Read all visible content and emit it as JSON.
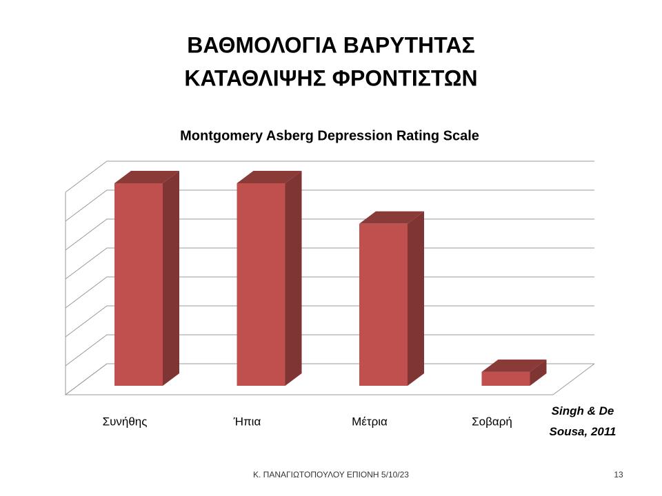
{
  "slide_title": [
    "ΒΑΘΜΟΛΟΓΙΑ ΒΑΡΥΤΗΤΑΣ",
    "ΚΑΤΑΘΛΙΨΗΣ ΦΡΟΝΤΙΣΤΩΝ"
  ],
  "chart_data": {
    "type": "bar3d",
    "title": "Montgomery Asberg Depression Rating Scale",
    "categories": [
      "Συνήθης",
      "Ήπια",
      "Μέτρια",
      "Σοβαρή"
    ],
    "values": [
      35,
      35,
      28,
      2.4
    ],
    "color": "#c0504d",
    "ylim": [
      0,
      35
    ],
    "yticks": [
      0,
      5,
      10,
      15,
      20,
      25,
      30,
      35
    ],
    "grid": true
  },
  "source": "Singh & De Sousa, 2011",
  "footer": "Κ. ΠΑΝΑΓΙΩΤΟΠΟΥΛΟΥ ΕΠΙΟΝΗ 5/10/23",
  "page_number": "13"
}
